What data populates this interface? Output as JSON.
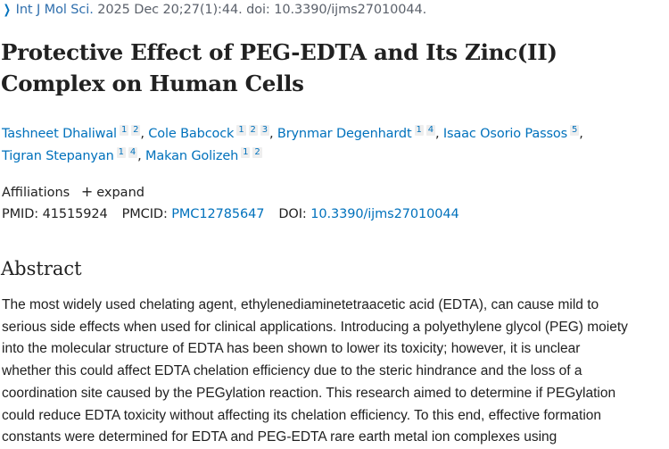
{
  "citation": {
    "chevron_icon": "chevron-right-icon",
    "journal": "Int J Mol Sci.",
    "details": "2025 Dec 20;27(1):44. doi: 10.3390/ijms27010044."
  },
  "title": {
    "line1": "Protective Effect of PEG-EDTA and Its Zinc(II)",
    "line2": "Complex on Human Cells"
  },
  "authors": [
    {
      "name": "Tashneet Dhaliwal",
      "affiliations": [
        "1",
        "2"
      ]
    },
    {
      "name": "Cole Babcock",
      "affiliations": [
        "1",
        "2",
        "3"
      ]
    },
    {
      "name": "Brynmar Degenhardt",
      "affiliations": [
        "1",
        "4"
      ]
    },
    {
      "name": "Isaac Osorio Passos",
      "affiliations": [
        "5"
      ]
    },
    {
      "name": "Tigran Stepanyan",
      "affiliations": [
        "1",
        "4"
      ]
    },
    {
      "name": "Makan Golizeh",
      "affiliations": [
        "1",
        "2"
      ]
    }
  ],
  "affiliations": {
    "label": "Affiliations",
    "expand_icon": "plus-icon",
    "expand_label": "expand"
  },
  "identifiers": {
    "pmid_label": "PMID:",
    "pmid": "41515924",
    "pmcid_label": "PMCID:",
    "pmcid": "PMC12785647",
    "doi_label": "DOI:",
    "doi": "10.3390/ijms27010044"
  },
  "abstract": {
    "heading": "Abstract",
    "lines": [
      "The most widely used chelating agent, ethylenediaminetetraacetic acid (EDTA), can cause mild to",
      "serious side effects when used for clinical applications. Introducing a polyethylene glycol (PEG) moiety",
      "into the molecular structure of EDTA has been shown to lower its toxicity; however, it is unclear",
      "whether this could affect EDTA chelation efficiency due to the steric hindrance and the loss of a",
      "coordination site caused by the PEGylation reaction. This research aimed to determine if PEGylation",
      "could reduce EDTA toxicity without affecting its chelation efficiency. To this end, effective formation",
      "constants were determined for EDTA and PEG-EDTA rare earth metal ion complexes using"
    ]
  },
  "colors": {
    "link": "#0071bc",
    "text": "#212121",
    "muted": "#5b616b",
    "badge_bg": "#eeeeee"
  }
}
